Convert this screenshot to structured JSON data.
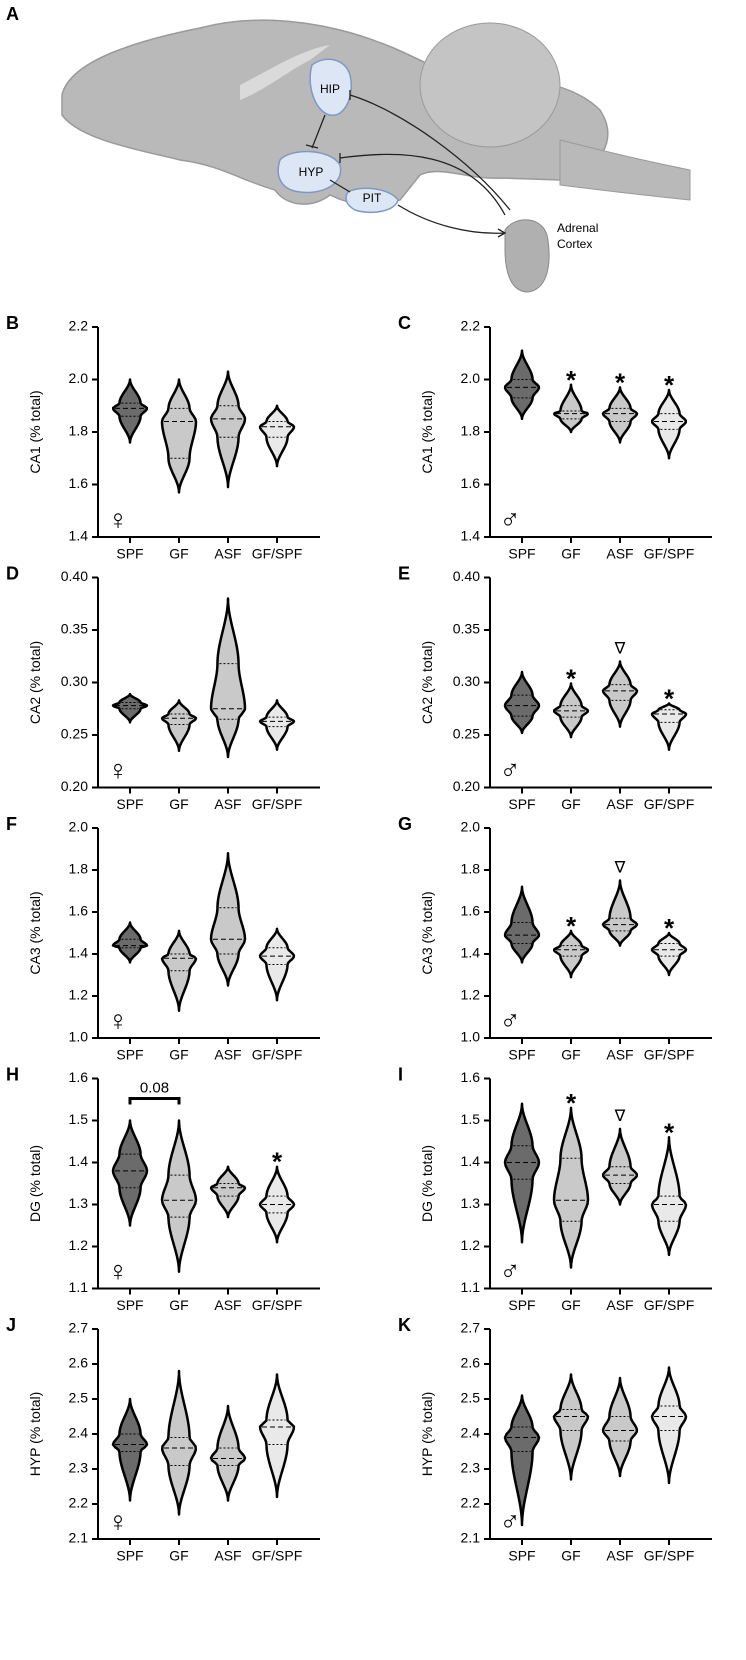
{
  "diagram": {
    "panel": "A",
    "hip": "HIP",
    "hyp": "HYP",
    "pit": "PIT",
    "adrenal": [
      "Adrenal",
      "Cortex"
    ]
  },
  "chart_data": [
    {
      "type": "violin",
      "panel": "B",
      "ylabel": "CA1 (% total)",
      "sex": "♀",
      "categories": [
        "SPF",
        "GF",
        "ASF",
        "GF/SPF"
      ],
      "colors": [
        "#6b6b6b",
        "#c9c9c9",
        "#c9c9c9",
        "#e9e9e9"
      ],
      "min": [
        1.76,
        1.57,
        1.59,
        1.67
      ],
      "q1": [
        1.86,
        1.7,
        1.78,
        1.78
      ],
      "median": [
        1.89,
        1.84,
        1.85,
        1.82
      ],
      "q3": [
        1.91,
        1.89,
        1.9,
        1.84
      ],
      "max": [
        2.0,
        2.0,
        2.03,
        1.9
      ],
      "significance": [
        null,
        null,
        null,
        null
      ],
      "ylim": [
        1.4,
        2.2
      ],
      "yticks": [
        1.4,
        1.6,
        1.8,
        {
          "value": 2,
          "label": "2.0"
        },
        2.2
      ]
    },
    {
      "type": "violin",
      "panel": "C",
      "ylabel": "CA1 (% total)",
      "sex": "♂",
      "categories": [
        "SPF",
        "GF",
        "ASF",
        "GF/SPF"
      ],
      "colors": [
        "#6b6b6b",
        "#c9c9c9",
        "#c9c9c9",
        "#e9e9e9"
      ],
      "min": [
        1.85,
        1.8,
        1.76,
        1.7
      ],
      "q1": [
        1.93,
        1.85,
        1.84,
        1.81
      ],
      "median": [
        1.97,
        1.87,
        1.87,
        1.84
      ],
      "q3": [
        2.0,
        1.88,
        1.89,
        1.87
      ],
      "max": [
        2.11,
        1.98,
        1.97,
        1.96
      ],
      "significance": [
        null,
        "*",
        "*",
        "*"
      ],
      "ylim": [
        1.4,
        2.2
      ],
      "yticks": [
        1.4,
        1.6,
        1.8,
        {
          "value": 2,
          "label": "2.0"
        },
        2.2
      ]
    },
    {
      "type": "violin",
      "panel": "D",
      "ylabel": "CA2 (% total)",
      "sex": "♀",
      "categories": [
        "SPF",
        "GF",
        "ASF",
        "GF/SPF"
      ],
      "colors": [
        "#6b6b6b",
        "#c9c9c9",
        "#c9c9c9",
        "#e9e9e9"
      ],
      "min": [
        0.262,
        0.235,
        0.229,
        0.236
      ],
      "q1": [
        0.275,
        0.26,
        0.265,
        0.258
      ],
      "median": [
        0.278,
        0.266,
        0.275,
        0.263
      ],
      "q3": [
        0.281,
        0.27,
        0.318,
        0.267
      ],
      "max": [
        0.289,
        0.283,
        0.38,
        0.283
      ],
      "significance": [
        null,
        null,
        null,
        null
      ],
      "ylim": [
        0.2,
        0.4
      ],
      "yticks": [
        {
          "value": 0.2,
          "label": "0.20"
        },
        {
          "value": 0.25,
          "label": "0.25"
        },
        {
          "value": 0.3,
          "label": "0.30"
        },
        {
          "value": 0.35,
          "label": "0.35"
        },
        {
          "value": 0.4,
          "label": "0.40"
        }
      ]
    },
    {
      "type": "violin",
      "panel": "E",
      "ylabel": "CA2 (% total)",
      "sex": "♂",
      "categories": [
        "SPF",
        "GF",
        "ASF",
        "GF/SPF"
      ],
      "colors": [
        "#6b6b6b",
        "#c9c9c9",
        "#c9c9c9",
        "#e9e9e9"
      ],
      "min": [
        0.252,
        0.248,
        0.258,
        0.236
      ],
      "q1": [
        0.268,
        0.267,
        0.283,
        0.262
      ],
      "median": [
        0.278,
        0.273,
        0.292,
        0.27
      ],
      "q3": [
        0.288,
        0.278,
        0.298,
        0.274
      ],
      "max": [
        0.31,
        0.299,
        0.32,
        0.28
      ],
      "significance": [
        null,
        "*",
        "∇",
        "*"
      ],
      "ylim": [
        0.2,
        0.4
      ],
      "yticks": [
        {
          "value": 0.2,
          "label": "0.20"
        },
        {
          "value": 0.25,
          "label": "0.25"
        },
        {
          "value": 0.3,
          "label": "0.30"
        },
        {
          "value": 0.35,
          "label": "0.35"
        },
        {
          "value": 0.4,
          "label": "0.40"
        }
      ]
    },
    {
      "type": "violin",
      "panel": "F",
      "ylabel": "CA3 (% total)",
      "sex": "♀",
      "categories": [
        "SPF",
        "GF",
        "ASF",
        "GF/SPF"
      ],
      "colors": [
        "#6b6b6b",
        "#c9c9c9",
        "#c9c9c9",
        "#e9e9e9"
      ],
      "min": [
        1.36,
        1.13,
        1.25,
        1.18
      ],
      "q1": [
        1.43,
        1.32,
        1.4,
        1.35
      ],
      "median": [
        1.44,
        1.38,
        1.47,
        1.39
      ],
      "q3": [
        1.47,
        1.4,
        1.62,
        1.43
      ],
      "max": [
        1.55,
        1.51,
        1.88,
        1.52
      ],
      "significance": [
        null,
        null,
        null,
        null
      ],
      "ylim": [
        1,
        2
      ],
      "yticks": [
        {
          "value": 1,
          "label": "1.0"
        },
        1.2,
        1.4,
        1.6,
        1.8,
        {
          "value": 2,
          "label": "2.0"
        }
      ]
    },
    {
      "type": "violin",
      "panel": "G",
      "ylabel": "CA3 (% total)",
      "sex": "♂",
      "categories": [
        "SPF",
        "GF",
        "ASF",
        "GF/SPF"
      ],
      "colors": [
        "#6b6b6b",
        "#c9c9c9",
        "#c9c9c9",
        "#e9e9e9"
      ],
      "min": [
        1.36,
        1.29,
        1.44,
        1.3
      ],
      "q1": [
        1.45,
        1.39,
        1.51,
        1.39
      ],
      "median": [
        1.49,
        1.42,
        1.54,
        1.42
      ],
      "q3": [
        1.55,
        1.44,
        1.57,
        1.45
      ],
      "max": [
        1.72,
        1.51,
        1.75,
        1.5
      ],
      "significance": [
        null,
        "*",
        "∇",
        "*"
      ],
      "ylim": [
        1,
        2
      ],
      "yticks": [
        {
          "value": 1,
          "label": "1.0"
        },
        1.2,
        1.4,
        1.6,
        1.8,
        {
          "value": 2,
          "label": "2.0"
        }
      ]
    },
    {
      "type": "violin",
      "panel": "H",
      "ylabel": "DG (% total)",
      "sex": "♀",
      "categories": [
        "SPF",
        "GF",
        "ASF",
        "GF/SPF"
      ],
      "colors": [
        "#6b6b6b",
        "#c9c9c9",
        "#c9c9c9",
        "#e9e9e9"
      ],
      "min": [
        1.25,
        1.14,
        1.27,
        1.21
      ],
      "q1": [
        1.34,
        1.27,
        1.32,
        1.28
      ],
      "median": [
        1.38,
        1.31,
        1.34,
        1.3
      ],
      "q3": [
        1.42,
        1.37,
        1.35,
        1.32
      ],
      "max": [
        1.5,
        1.5,
        1.39,
        1.39
      ],
      "significance": [
        null,
        null,
        null,
        "*"
      ],
      "bracket": {
        "categories": [
          "SPF",
          "GF"
        ],
        "label": "0.08"
      },
      "ylim": [
        1.1,
        1.6
      ],
      "yticks": [
        1.1,
        1.2,
        1.3,
        1.4,
        1.5,
        1.6
      ]
    },
    {
      "type": "violin",
      "panel": "I",
      "ylabel": "DG (% total)",
      "sex": "♂",
      "categories": [
        "SPF",
        "GF",
        "ASF",
        "GF/SPF"
      ],
      "colors": [
        "#6b6b6b",
        "#c9c9c9",
        "#c9c9c9",
        "#e9e9e9"
      ],
      "min": [
        1.21,
        1.15,
        1.3,
        1.18
      ],
      "q1": [
        1.36,
        1.26,
        1.35,
        1.26
      ],
      "median": [
        1.4,
        1.31,
        1.37,
        1.3
      ],
      "q3": [
        1.44,
        1.41,
        1.39,
        1.32
      ],
      "max": [
        1.54,
        1.53,
        1.48,
        1.46
      ],
      "significance": [
        null,
        "*",
        "∇",
        "*"
      ],
      "ylim": [
        1.1,
        1.6
      ],
      "yticks": [
        1.1,
        1.2,
        1.3,
        1.4,
        1.5,
        1.6
      ]
    },
    {
      "type": "violin",
      "panel": "J",
      "ylabel": "HYP (% total)",
      "sex": "♀",
      "categories": [
        "SPF",
        "GF",
        "ASF",
        "GF/SPF"
      ],
      "colors": [
        "#6b6b6b",
        "#c9c9c9",
        "#c9c9c9",
        "#e9e9e9"
      ],
      "min": [
        2.21,
        2.17,
        2.21,
        2.22
      ],
      "q1": [
        2.35,
        2.31,
        2.31,
        2.37
      ],
      "median": [
        2.37,
        2.36,
        2.33,
        2.42
      ],
      "q3": [
        2.4,
        2.39,
        2.36,
        2.44
      ],
      "max": [
        2.5,
        2.58,
        2.48,
        2.57
      ],
      "significance": [
        null,
        null,
        null,
        null
      ],
      "ylim": [
        2.1,
        2.7
      ],
      "yticks": [
        2.1,
        2.2,
        2.3,
        2.4,
        2.5,
        2.6,
        2.7
      ]
    },
    {
      "type": "violin",
      "panel": "K",
      "ylabel": "HYP (% total)",
      "sex": "♂",
      "categories": [
        "SPF",
        "GF",
        "ASF",
        "GF/SPF"
      ],
      "colors": [
        "#6b6b6b",
        "#c9c9c9",
        "#c9c9c9",
        "#e9e9e9"
      ],
      "min": [
        2.14,
        2.27,
        2.28,
        2.26
      ],
      "q1": [
        2.35,
        2.41,
        2.38,
        2.41
      ],
      "median": [
        2.39,
        2.45,
        2.41,
        2.45
      ],
      "q3": [
        2.42,
        2.47,
        2.45,
        2.48
      ],
      "max": [
        2.51,
        2.57,
        2.56,
        2.59
      ],
      "significance": [
        null,
        null,
        null,
        null
      ],
      "ylim": [
        2.1,
        2.7
      ],
      "yticks": [
        2.1,
        2.2,
        2.3,
        2.4,
        2.5,
        2.6,
        2.7
      ]
    }
  ]
}
